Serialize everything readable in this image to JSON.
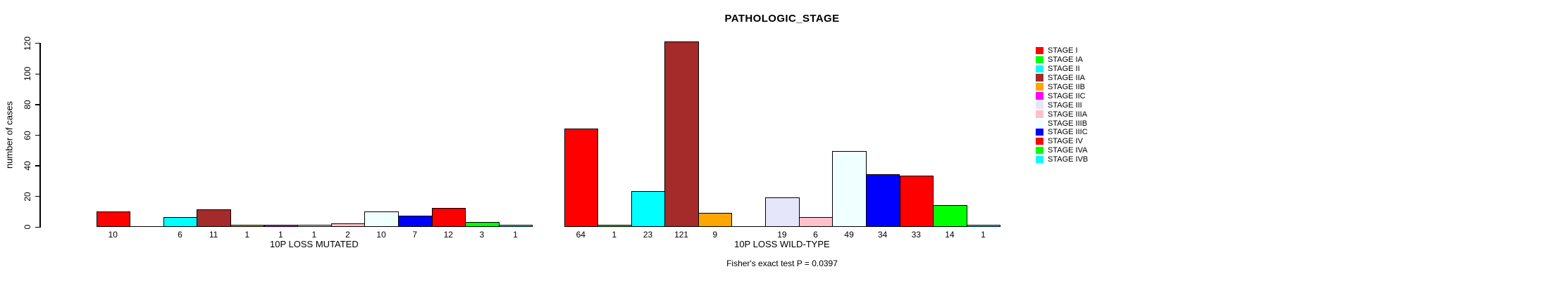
{
  "chart_data": {
    "type": "bar",
    "title": "PATHOLOGIC_STAGE",
    "xlabel": "",
    "ylabel": "number of cases",
    "ylim": [
      0,
      120
    ],
    "yticks": [
      0,
      20,
      40,
      60,
      80,
      100,
      120
    ],
    "grid": false,
    "legend_position": "right",
    "categories": [
      "STAGE I",
      "STAGE IA",
      "STAGE II",
      "STAGE IIA",
      "STAGE IIB",
      "STAGE IIC",
      "STAGE III",
      "STAGE IIIA",
      "STAGE IIIB",
      "STAGE IIIC",
      "STAGE IV",
      "STAGE IVA",
      "STAGE IVB"
    ],
    "colors": [
      "#FF0000",
      "#00FF00",
      "#00FFFF",
      "#A52A2A",
      "#FFA500",
      "#FF00FF",
      "#E6E6FA",
      "#FFC0CB",
      "#F0FFFF",
      "#0000FF",
      "#FF0000",
      "#00FF00",
      "#00FFFF"
    ],
    "series": [
      {
        "name": "10P LOSS MUTATED",
        "values": [
          10,
          0,
          6,
          11,
          1,
          1,
          1,
          2,
          10,
          7,
          12,
          3,
          1
        ]
      },
      {
        "name": "10P LOSS WILD-TYPE",
        "values": [
          64,
          1,
          23,
          121,
          9,
          0,
          19,
          6,
          49,
          34,
          33,
          14,
          1
        ]
      }
    ],
    "bar_value_labels_shown_for_zero": false,
    "annotation": "Fisher's exact test P = 0.0397"
  }
}
